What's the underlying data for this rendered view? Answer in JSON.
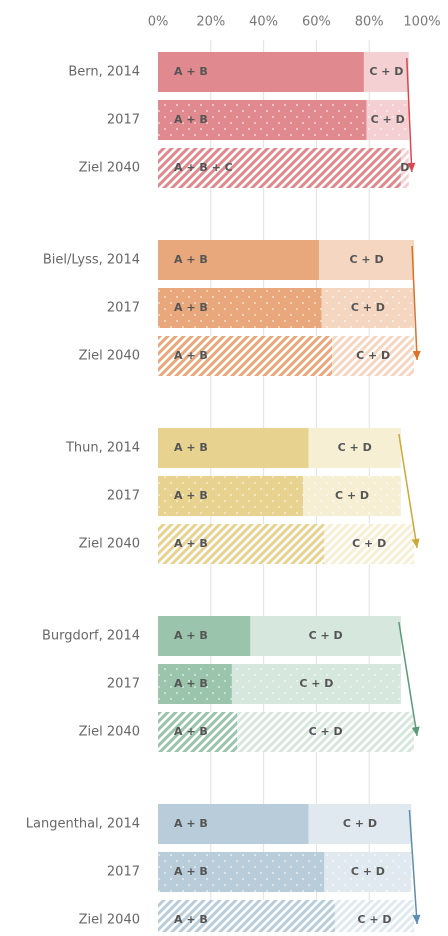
{
  "chart_data": {
    "type": "bar",
    "stacked": true,
    "orientation": "horizontal",
    "xlim": [
      0,
      100
    ],
    "xticks": [
      {
        "value": 0,
        "label": "0%"
      },
      {
        "value": 20,
        "label": "20%"
      },
      {
        "value": 40,
        "label": "40%"
      },
      {
        "value": 60,
        "label": "60%"
      },
      {
        "value": 80,
        "label": "80%"
      },
      {
        "value": 100,
        "label": "100%"
      }
    ],
    "grid": true,
    "groups": [
      {
        "color": "#e08a8f",
        "light": "#f4d0d2",
        "arrow": "#d9474f",
        "rows": [
          {
            "label": "Bern, 2014",
            "segments": [
              {
                "label": "A + B",
                "value": 78
              },
              {
                "label": "C + D",
                "value": 17
              }
            ]
          },
          {
            "label": "2017",
            "segments": [
              {
                "label": "A + B",
                "value": 79
              },
              {
                "label": "C + D",
                "value": 16
              }
            ]
          },
          {
            "label": "Ziel 2040",
            "segments": [
              {
                "label": "A + B + C",
                "value": 92
              },
              {
                "label": "D",
                "value": 3
              }
            ]
          }
        ]
      },
      {
        "color": "#e8a87c",
        "light": "#f5d6c1",
        "arrow": "#d9722a",
        "rows": [
          {
            "label": "Biel/Lyss, 2014",
            "segments": [
              {
                "label": "A + B",
                "value": 61
              },
              {
                "label": "C + D",
                "value": 36
              }
            ]
          },
          {
            "label": "2017",
            "segments": [
              {
                "label": "A + B",
                "value": 62
              },
              {
                "label": "C + D",
                "value": 35
              }
            ]
          },
          {
            "label": "Ziel 2040",
            "segments": [
              {
                "label": "A + B",
                "value": 66
              },
              {
                "label": "C + D",
                "value": 31
              }
            ]
          }
        ]
      },
      {
        "color": "#e8d28f",
        "light": "#f7efd4",
        "arrow": "#c9a93a",
        "rows": [
          {
            "label": "Thun, 2014",
            "segments": [
              {
                "label": "A + B",
                "value": 57
              },
              {
                "label": "C + D",
                "value": 35
              }
            ]
          },
          {
            "label": "2017",
            "segments": [
              {
                "label": "A + B",
                "value": 55
              },
              {
                "label": "C + D",
                "value": 37
              }
            ]
          },
          {
            "label": "Ziel 2040",
            "segments": [
              {
                "label": "A + B",
                "value": 63
              },
              {
                "label": "C + D",
                "value": 34
              }
            ]
          }
        ]
      },
      {
        "color": "#9ac4ac",
        "light": "#d6e8dd",
        "arrow": "#5b9a78",
        "rows": [
          {
            "label": "Burgdorf, 2014",
            "segments": [
              {
                "label": "A + B",
                "value": 35
              },
              {
                "label": "C + D",
                "value": 57
              }
            ]
          },
          {
            "label": "2017",
            "segments": [
              {
                "label": "A + B",
                "value": 28
              },
              {
                "label": "C + D",
                "value": 64
              }
            ]
          },
          {
            "label": "Ziel 2040",
            "segments": [
              {
                "label": "A + B",
                "value": 30
              },
              {
                "label": "C + D",
                "value": 67
              }
            ]
          }
        ]
      },
      {
        "color": "#b8cdd9",
        "light": "#e0e9ef",
        "arrow": "#5b8db0",
        "rows": [
          {
            "label": "Langenthal, 2014",
            "segments": [
              {
                "label": "A + B",
                "value": 57
              },
              {
                "label": "C + D",
                "value": 39
              }
            ]
          },
          {
            "label": "2017",
            "segments": [
              {
                "label": "A + B",
                "value": 63
              },
              {
                "label": "C + D",
                "value": 33
              }
            ]
          },
          {
            "label": "Ziel 2040",
            "segments": [
              {
                "label": "A + B",
                "value": 67
              },
              {
                "label": "C + D",
                "value": 30
              }
            ]
          }
        ]
      }
    ]
  }
}
